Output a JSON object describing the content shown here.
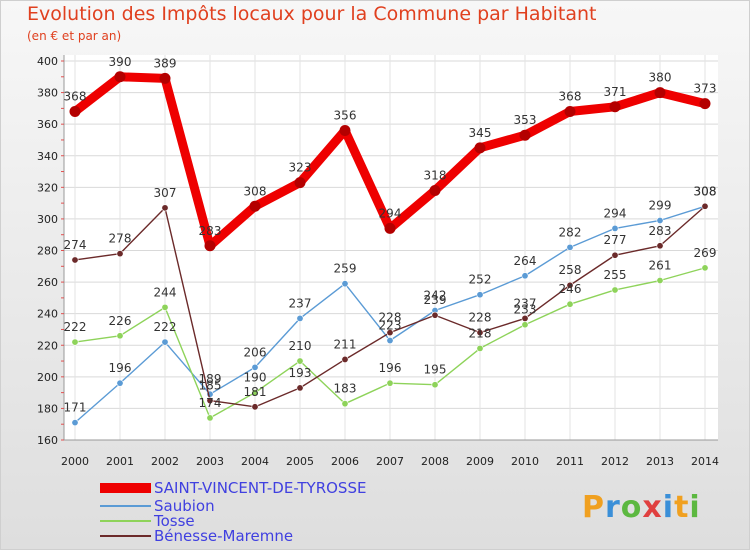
{
  "header": {
    "title": "Evolution des Impôts locaux pour la Commune par Habitant",
    "subtitle": "(en € et par an)"
  },
  "logo": {
    "text": "Proxiti"
  },
  "chart_data": {
    "type": "line",
    "title": "Evolution des Impôts locaux pour la Commune par Habitant",
    "subtitle": "(en € et par an)",
    "categories": [
      "2000",
      "2001",
      "2002",
      "2003",
      "2004",
      "2005",
      "2006",
      "2007",
      "2008",
      "2009",
      "2010",
      "2011",
      "2012",
      "2013",
      "2014"
    ],
    "ylim": [
      160,
      400
    ],
    "yticks": [
      160,
      180,
      200,
      220,
      240,
      260,
      280,
      300,
      320,
      340,
      360,
      380,
      400
    ],
    "grid": true,
    "legend": "bottom-left",
    "series": [
      {
        "name": "SAINT-VINCENT-DE-TYROSSE",
        "color": "#ee0000",
        "values": [
          368,
          390,
          389,
          283,
          308,
          323,
          356,
          294,
          318,
          345,
          353,
          368,
          371,
          380,
          373
        ]
      },
      {
        "name": "Saubion",
        "color": "#5b9bd5",
        "values": [
          171,
          196,
          222,
          189,
          206,
          237,
          259,
          223,
          242,
          252,
          264,
          282,
          294,
          299,
          308
        ]
      },
      {
        "name": "Tosse",
        "color": "#8ed35a",
        "values": [
          222,
          226,
          244,
          174,
          190,
          210,
          183,
          196,
          195,
          218,
          233,
          246,
          255,
          261,
          269
        ]
      },
      {
        "name": "Bénesse-Maremne",
        "color": "#6b2a2a",
        "values": [
          274,
          278,
          307,
          185,
          181,
          193,
          211,
          228,
          239,
          228,
          237,
          258,
          277,
          283,
          308
        ]
      }
    ]
  }
}
